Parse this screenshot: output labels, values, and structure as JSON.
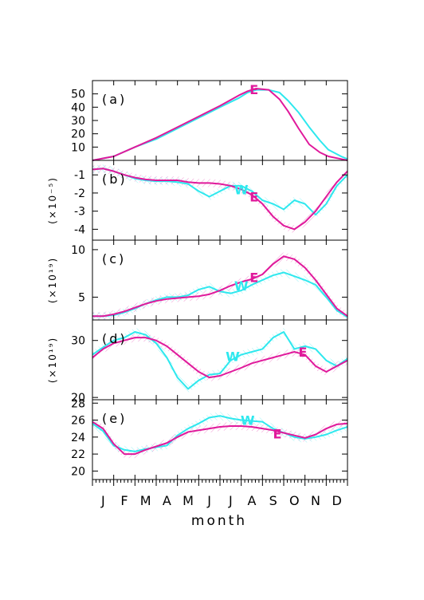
{
  "colors": {
    "series_E": "#e0199b",
    "series_W": "#2ee8ee",
    "axis": "#000000"
  },
  "months": [
    "J",
    "F",
    "M",
    "A",
    "M",
    "J",
    "J",
    "A",
    "S",
    "O",
    "N",
    "D"
  ],
  "xlabel": "month",
  "chart_data": [
    {
      "type": "line",
      "panel_label": "(a)",
      "ylabel": "",
      "ylim": [
        0,
        60
      ],
      "yticks": [
        10,
        20,
        30,
        40,
        50
      ],
      "ytick_labels": [
        "10",
        "20",
        "30",
        "40",
        "50"
      ],
      "series": [
        {
          "name": "E",
          "color": "#e0199b",
          "x": [
            0,
            1,
            2,
            3,
            4,
            5,
            6,
            6.9,
            7.3,
            7.7,
            8.3,
            8.8,
            9.2,
            9.7,
            10.2,
            10.7,
            11.1,
            11.7,
            12
          ],
          "y": [
            0,
            3,
            10,
            17,
            25,
            33,
            41,
            49,
            52,
            54,
            53,
            46,
            37,
            24,
            12,
            6,
            3,
            1,
            0
          ]
        },
        {
          "name": "W",
          "color": "#2ee8ee",
          "x": [
            0,
            1,
            2,
            3,
            4,
            5,
            6,
            6.9,
            7.3,
            7.7,
            8.3,
            8.8,
            9.2,
            9.7,
            10.2,
            10.7,
            11.1,
            11.7,
            12
          ],
          "y": [
            0,
            3,
            10,
            16,
            24,
            32,
            40,
            47,
            51,
            53,
            53,
            51,
            45,
            36,
            25,
            15,
            8,
            3,
            1
          ]
        }
      ],
      "series_labels": [
        {
          "text": "E",
          "x": 7.6,
          "y": 53.5,
          "color": "#e0199b"
        }
      ]
    },
    {
      "type": "line",
      "panel_label": "(b)",
      "ylabel": "(×10⁻⁵)",
      "ylim": [
        -4.6,
        -0.2
      ],
      "yticks": [
        -4,
        -3,
        -2,
        -1
      ],
      "ytick_labels": [
        "-4",
        "-3",
        "-2",
        "-1"
      ],
      "series": [
        {
          "name": "E",
          "color": "#e0199b",
          "x": [
            0,
            0.5,
            1,
            1.5,
            2,
            2.5,
            3,
            3.5,
            4,
            4.5,
            5,
            5.5,
            6,
            6.5,
            7,
            7.5,
            8,
            8.5,
            9,
            9.5,
            10,
            10.5,
            11,
            11.5,
            12
          ],
          "y": [
            -0.7,
            -0.65,
            -0.8,
            -1.0,
            -1.15,
            -1.25,
            -1.3,
            -1.3,
            -1.3,
            -1.4,
            -1.45,
            -1.45,
            -1.5,
            -1.6,
            -1.8,
            -2.1,
            -2.6,
            -3.3,
            -3.8,
            -4.0,
            -3.6,
            -3.0,
            -2.2,
            -1.4,
            -0.8
          ]
        },
        {
          "name": "W",
          "color": "#2ee8ee",
          "x": [
            0,
            0.5,
            1,
            1.5,
            2,
            2.5,
            3,
            3.5,
            4,
            4.5,
            5,
            5.5,
            6,
            6.5,
            7,
            7.5,
            8,
            8.5,
            9,
            9.5,
            10,
            10.5,
            11,
            11.5,
            12
          ],
          "y": [
            -0.7,
            -0.65,
            -0.8,
            -1.0,
            -1.2,
            -1.3,
            -1.35,
            -1.35,
            -1.4,
            -1.5,
            -1.9,
            -2.2,
            -1.9,
            -1.6,
            -1.6,
            -1.9,
            -2.4,
            -2.6,
            -2.9,
            -2.4,
            -2.6,
            -3.2,
            -2.6,
            -1.6,
            -1.0
          ]
        }
      ],
      "series_labels": [
        {
          "text": "W",
          "x": 7.0,
          "y": -1.8,
          "color": "#2ee8ee"
        },
        {
          "text": "E",
          "x": 7.6,
          "y": -2.2,
          "color": "#e0199b"
        }
      ]
    },
    {
      "type": "line",
      "panel_label": "(c)",
      "ylabel": "(×10¹⁹)",
      "ylim": [
        2.6,
        11
      ],
      "yticks": [
        5,
        10
      ],
      "ytick_labels": [
        "5",
        "10"
      ],
      "series": [
        {
          "name": "E",
          "color": "#e0199b",
          "x": [
            0,
            0.5,
            1,
            1.5,
            2,
            2.5,
            3,
            3.5,
            4,
            4.5,
            5,
            5.5,
            6,
            6.5,
            7,
            7.5,
            8,
            8.5,
            9,
            9.5,
            10,
            10.5,
            11,
            11.5,
            12
          ],
          "y": [
            3.0,
            3.0,
            3.2,
            3.5,
            3.9,
            4.3,
            4.6,
            4.8,
            4.9,
            5.0,
            5.1,
            5.3,
            5.7,
            6.2,
            6.6,
            6.9,
            7.4,
            8.5,
            9.3,
            9.0,
            8.1,
            6.8,
            5.3,
            3.8,
            3.0
          ]
        },
        {
          "name": "W",
          "color": "#2ee8ee",
          "x": [
            0,
            0.5,
            1,
            1.5,
            2,
            2.5,
            3,
            3.5,
            4,
            4.5,
            5,
            5.5,
            6,
            6.5,
            7,
            7.5,
            8,
            8.5,
            9,
            9.5,
            10,
            10.5,
            11,
            11.5,
            12
          ],
          "y": [
            3.0,
            3.0,
            3.1,
            3.4,
            3.8,
            4.3,
            4.7,
            5.0,
            5.0,
            5.2,
            5.8,
            6.1,
            5.6,
            5.4,
            5.7,
            6.3,
            6.8,
            7.3,
            7.6,
            7.2,
            6.8,
            6.3,
            5.0,
            3.6,
            2.9
          ]
        }
      ],
      "series_labels": [
        {
          "text": "W",
          "x": 7.0,
          "y": 6.2,
          "color": "#2ee8ee"
        },
        {
          "text": "E",
          "x": 7.6,
          "y": 7.1,
          "color": "#e0199b"
        }
      ]
    },
    {
      "type": "line",
      "panel_label": "(d)",
      "ylabel": "(×10¹⁹)",
      "ylim": [
        19.6,
        33.6
      ],
      "yticks": [
        20,
        30
      ],
      "ytick_labels": [
        "20",
        "30"
      ],
      "series": [
        {
          "name": "E",
          "color": "#e0199b",
          "x": [
            0,
            0.5,
            1,
            1.5,
            2,
            2.5,
            3,
            3.5,
            4,
            4.5,
            5,
            5.5,
            6,
            6.5,
            7,
            7.5,
            8,
            8.5,
            9,
            9.5,
            10,
            10.5,
            11,
            11.5,
            12
          ],
          "y": [
            27,
            28.5,
            29.5,
            30,
            30.5,
            30.5,
            30,
            29,
            27.5,
            26,
            24.5,
            23.5,
            23.8,
            24.5,
            25.2,
            26,
            26.5,
            27,
            27.5,
            28,
            27.5,
            25.5,
            24.5,
            25.5,
            26.5
          ]
        },
        {
          "name": "W",
          "color": "#2ee8ee",
          "x": [
            0,
            0.5,
            1,
            1.5,
            2,
            2.5,
            3,
            3.5,
            4,
            4.5,
            5,
            5.5,
            6,
            6.5,
            7,
            7.5,
            8,
            8.5,
            9,
            9.5,
            10,
            10.5,
            11,
            11.5,
            12
          ],
          "y": [
            27.5,
            28.8,
            30,
            30.5,
            31.5,
            31,
            29.5,
            27,
            23.5,
            21.5,
            23,
            24,
            24.2,
            26.5,
            27.5,
            28,
            28.5,
            30.5,
            31.5,
            28.5,
            29,
            28.5,
            26.5,
            25.5,
            26.8
          ]
        }
      ],
      "series_labels": [
        {
          "text": "W",
          "x": 6.6,
          "y": 27.2,
          "color": "#2ee8ee"
        },
        {
          "text": "E",
          "x": 9.9,
          "y": 28.0,
          "color": "#e0199b"
        }
      ]
    },
    {
      "type": "line",
      "panel_label": "(e)",
      "ylabel": "",
      "ylim": [
        19,
        28.4
      ],
      "yticks": [
        20,
        22,
        24,
        26,
        28
      ],
      "ytick_labels": [
        "20",
        "22",
        "24",
        "26",
        "28"
      ],
      "series": [
        {
          "name": "E",
          "color": "#e0199b",
          "x": [
            0,
            0.5,
            1,
            1.5,
            2,
            2.5,
            3,
            3.5,
            4,
            4.5,
            5,
            5.5,
            6,
            6.5,
            7,
            7.5,
            8,
            8.5,
            9,
            9.5,
            10,
            10.5,
            11,
            11.5,
            12
          ],
          "y": [
            25.8,
            25.0,
            23.2,
            22.0,
            22.0,
            22.5,
            22.9,
            23.3,
            24.0,
            24.6,
            24.8,
            25.0,
            25.2,
            25.3,
            25.3,
            25.2,
            25.0,
            24.8,
            24.5,
            24.2,
            23.9,
            24.3,
            25.0,
            25.5,
            25.6
          ]
        },
        {
          "name": "W",
          "color": "#2ee8ee",
          "x": [
            0,
            0.5,
            1,
            1.5,
            2,
            2.5,
            3,
            3.5,
            4,
            4.5,
            5,
            5.5,
            6,
            6.5,
            7,
            7.5,
            8,
            8.5,
            9,
            9.5,
            10,
            10.5,
            11,
            11.5,
            12
          ],
          "y": [
            25.6,
            24.7,
            23.0,
            22.5,
            22.3,
            22.6,
            22.8,
            23.0,
            24.2,
            25.0,
            25.6,
            26.3,
            26.5,
            26.2,
            26.0,
            25.9,
            25.8,
            25.0,
            24.5,
            24.0,
            23.8,
            24.0,
            24.3,
            24.8,
            25.2
          ]
        }
      ],
      "series_labels": [
        {
          "text": "W",
          "x": 7.3,
          "y": 26.0,
          "color": "#2ee8ee"
        },
        {
          "text": "E",
          "x": 8.7,
          "y": 24.4,
          "color": "#e0199b"
        }
      ]
    }
  ]
}
